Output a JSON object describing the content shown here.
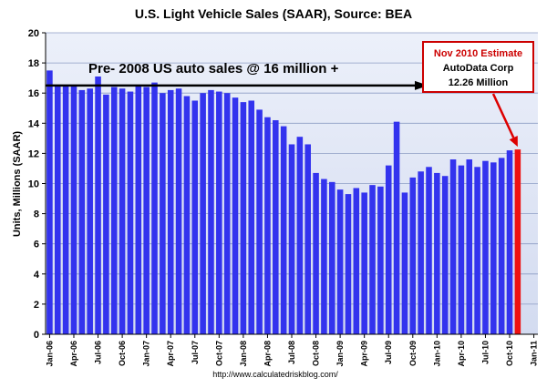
{
  "chart_data": {
    "type": "bar",
    "title": "U.S. Light Vehicle Sales (SAAR), Source: BEA",
    "ylabel": "Units, Millions (SAAR)",
    "xlabel": "",
    "ylim": [
      0,
      20
    ],
    "yticks": [
      0,
      2,
      4,
      6,
      8,
      10,
      12,
      14,
      16,
      18,
      20
    ],
    "grid": "horizontal",
    "xtick_labels": [
      "Jan-06",
      "Apr-06",
      "Jul-06",
      "Oct-06",
      "Jan-07",
      "Apr-07",
      "Jul-07",
      "Oct-07",
      "Jan-08",
      "Apr-08",
      "Jul-08",
      "Oct-08",
      "Jan-09",
      "Apr-09",
      "Jul-09",
      "Oct-09",
      "Jan-10",
      "Apr-10",
      "Jul-10",
      "Oct-10",
      "Jan-11"
    ],
    "series": [
      {
        "name": "Light Vehicle Sales",
        "color": "#3333ee",
        "values": [
          17.5,
          16.5,
          16.5,
          16.5,
          16.2,
          16.3,
          17.1,
          15.9,
          16.4,
          16.3,
          16.1,
          16.5,
          16.4,
          16.7,
          16.0,
          16.2,
          16.3,
          15.8,
          15.5,
          16.0,
          16.2,
          16.1,
          16.0,
          15.7,
          15.4,
          15.5,
          14.9,
          14.4,
          14.2,
          13.8,
          12.6,
          13.1,
          12.6,
          10.7,
          10.3,
          10.1,
          9.6,
          9.3,
          9.7,
          9.4,
          9.9,
          9.8,
          11.2,
          14.1,
          9.4,
          10.4,
          10.8,
          11.1,
          10.7,
          10.5,
          11.6,
          11.2,
          11.6,
          11.1,
          11.5,
          11.4,
          11.7,
          12.2
        ]
      },
      {
        "name": "Nov 2010 Estimate",
        "color": "#ee1111",
        "values": [
          12.26
        ]
      }
    ],
    "reference_line": {
      "value": 16.5,
      "label": "Pre- 2008 US auto sales @ 16 million +"
    },
    "annotation": {
      "lines": [
        "Nov 2010 Estimate",
        "AutoData  Corp",
        "12.26 Million"
      ],
      "color": "#cc0000"
    },
    "source": "http://www.calculatedriskblog.com/"
  }
}
